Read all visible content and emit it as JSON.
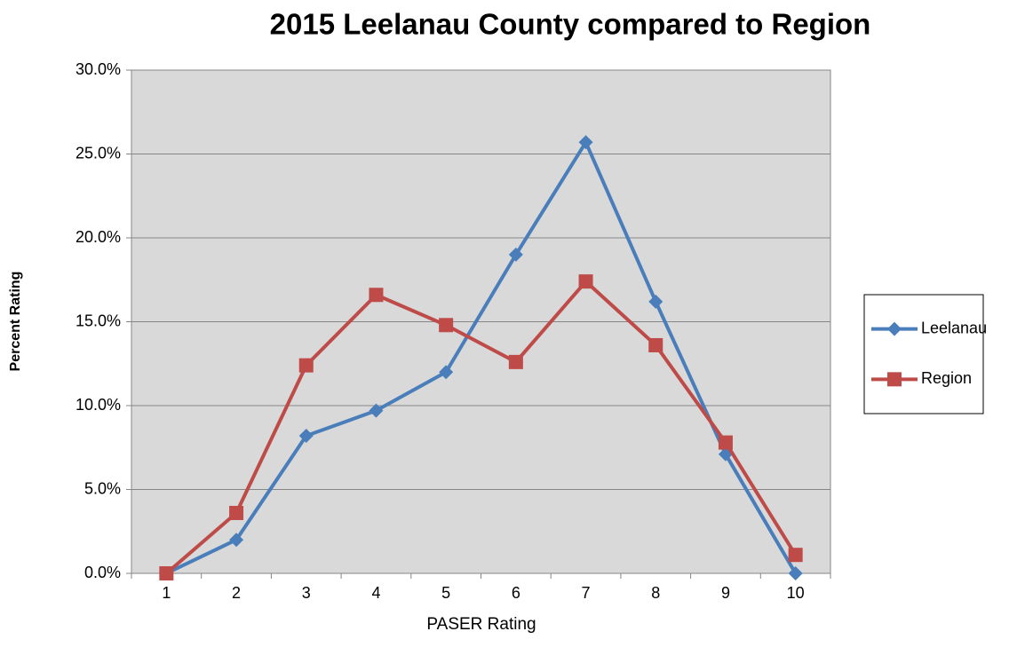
{
  "chart_data": {
    "type": "line",
    "title": "2015 Leelanau County compared to Region",
    "x_label": "PASER Rating",
    "y_label": "Percent Rating",
    "categories": [
      "1",
      "2",
      "3",
      "4",
      "5",
      "6",
      "7",
      "8",
      "9",
      "10"
    ],
    "series": [
      {
        "name": "Leelanau",
        "color": "#4a7ebb",
        "marker": "diamond",
        "values": [
          0,
          2.0,
          8.2,
          9.7,
          12.0,
          19.0,
          25.7,
          16.2,
          7.1,
          0
        ]
      },
      {
        "name": "Region",
        "color": "#be4b48",
        "marker": "square",
        "values": [
          0,
          3.6,
          12.4,
          16.6,
          14.8,
          12.6,
          17.4,
          13.6,
          7.8,
          1.1
        ]
      }
    ],
    "ylim": [
      0,
      30
    ],
    "yticks": [
      {
        "value": 0,
        "label": "0.0%"
      },
      {
        "value": 5,
        "label": "5.0%"
      },
      {
        "value": 10,
        "label": "10.0%"
      },
      {
        "value": 15,
        "label": "15.0%"
      },
      {
        "value": 20,
        "label": "20.0%"
      },
      {
        "value": 25,
        "label": "25.0%"
      },
      {
        "value": 30,
        "label": "30.0%"
      }
    ],
    "grid": true,
    "legend": "right"
  }
}
